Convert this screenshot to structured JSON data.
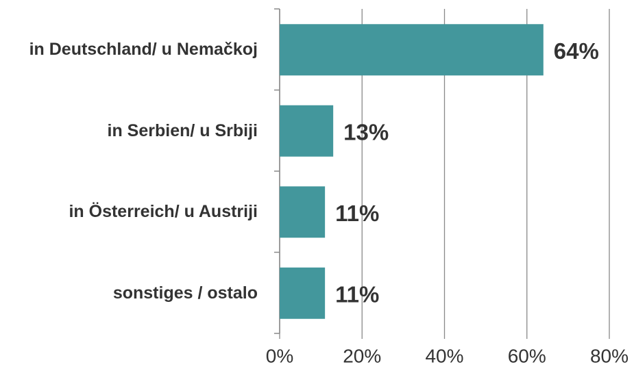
{
  "chart_data": {
    "type": "bar",
    "orientation": "horizontal",
    "categories": [
      "in Deutschland/ u Nemačkoj",
      "in Serbien/ u Srbiji",
      "in Österreich/ u Austriji",
      "sonstiges / ostalo"
    ],
    "values": [
      64,
      13,
      11,
      11
    ],
    "value_labels": [
      "64%",
      "13%",
      "11%",
      "11%"
    ],
    "color": "#43979c",
    "xlim": [
      0,
      80
    ],
    "xticks": [
      {
        "value": 0,
        "label": "0%"
      },
      {
        "value": 20,
        "label": "20%"
      },
      {
        "value": 40,
        "label": "40%"
      },
      {
        "value": 60,
        "label": "60%"
      },
      {
        "value": 80,
        "label": "80%"
      }
    ],
    "grid": true
  }
}
